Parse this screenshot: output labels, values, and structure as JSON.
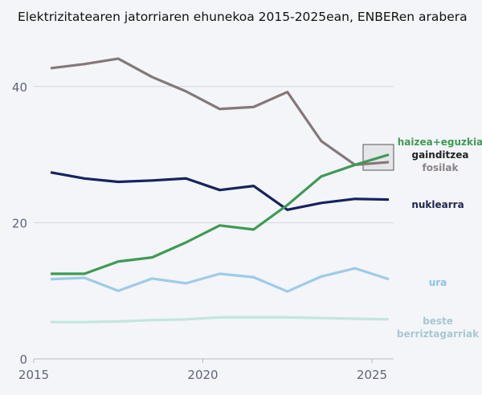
{
  "chart_data": {
    "type": "line",
    "title": "Elektrizitatearen jatorriaren ehunekoa 2015-2025ean, ENBERen arabera",
    "xlabel": "",
    "ylabel": "",
    "x": [
      2015.5,
      2016.5,
      2017.5,
      2018.5,
      2019.5,
      2020.5,
      2021.5,
      2022.5,
      2023.5,
      2024.5,
      2025.5
    ],
    "xlim": [
      2015,
      2025.6
    ],
    "ylim": [
      0,
      45
    ],
    "xticks": [
      "2015",
      "2020",
      "2025"
    ],
    "yticks": [
      "0",
      "20",
      "40"
    ],
    "grid": true,
    "series": [
      {
        "name": "fosilak",
        "color": "#857878",
        "values": [
          42.7,
          43.3,
          44.1,
          41.4,
          39.3,
          36.7,
          37.0,
          39.2,
          32.0,
          28.5,
          28.9
        ]
      },
      {
        "name": "nuklearra",
        "color": "#16235f",
        "values": [
          27.4,
          26.5,
          26.0,
          26.2,
          26.5,
          24.8,
          25.4,
          21.9,
          22.9,
          23.5,
          23.4
        ]
      },
      {
        "name": "haizea+eguzkia",
        "color": "#3f9a55",
        "values": [
          12.5,
          12.5,
          14.3,
          14.9,
          17.1,
          19.6,
          19.0,
          22.6,
          26.8,
          28.5,
          30.0
        ]
      },
      {
        "name": "ura",
        "color": "#9ecbe8",
        "values": [
          11.7,
          11.9,
          10.0,
          11.8,
          11.1,
          12.5,
          12.0,
          9.9,
          12.1,
          13.3,
          11.7
        ]
      },
      {
        "name": "beste berriztagarriak",
        "color": "#c3e6df",
        "values": [
          5.4,
          5.4,
          5.5,
          5.7,
          5.8,
          6.1,
          6.1,
          6.1,
          6.0,
          5.9,
          5.8
        ]
      }
    ],
    "annotation": {
      "lines": [
        "haizea+eguzkia",
        "gainditzea",
        "fosilak"
      ],
      "colors": [
        "#3f9a55",
        "#222222",
        "#8a8486"
      ]
    },
    "labels": [
      {
        "lines": [
          "nuklearra"
        ],
        "color": "#1e2550"
      },
      {
        "lines": [
          "ura"
        ],
        "color": "#8ec3e6"
      },
      {
        "lines": [
          "beste",
          "berriztagarriak"
        ],
        "color": "#a8c8cf"
      }
    ]
  }
}
